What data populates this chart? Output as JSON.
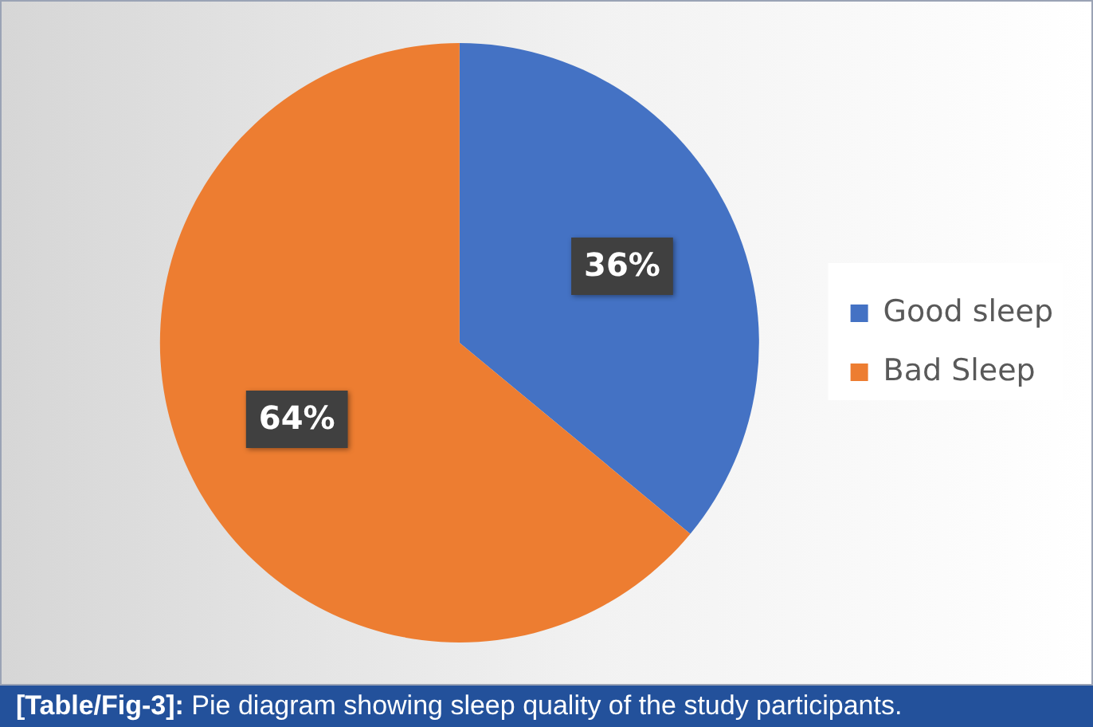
{
  "chart_data": {
    "type": "pie",
    "categories": [
      "Good sleep",
      "Bad Sleep"
    ],
    "values": [
      36,
      64
    ],
    "colors": [
      "#4472c4",
      "#ed7d31"
    ],
    "value_labels": [
      "36%",
      "64%"
    ],
    "legend": "right",
    "annotations": [
      "[Table/Fig-3]: Pie diagram showing sleep quality of the study participants."
    ]
  }
}
